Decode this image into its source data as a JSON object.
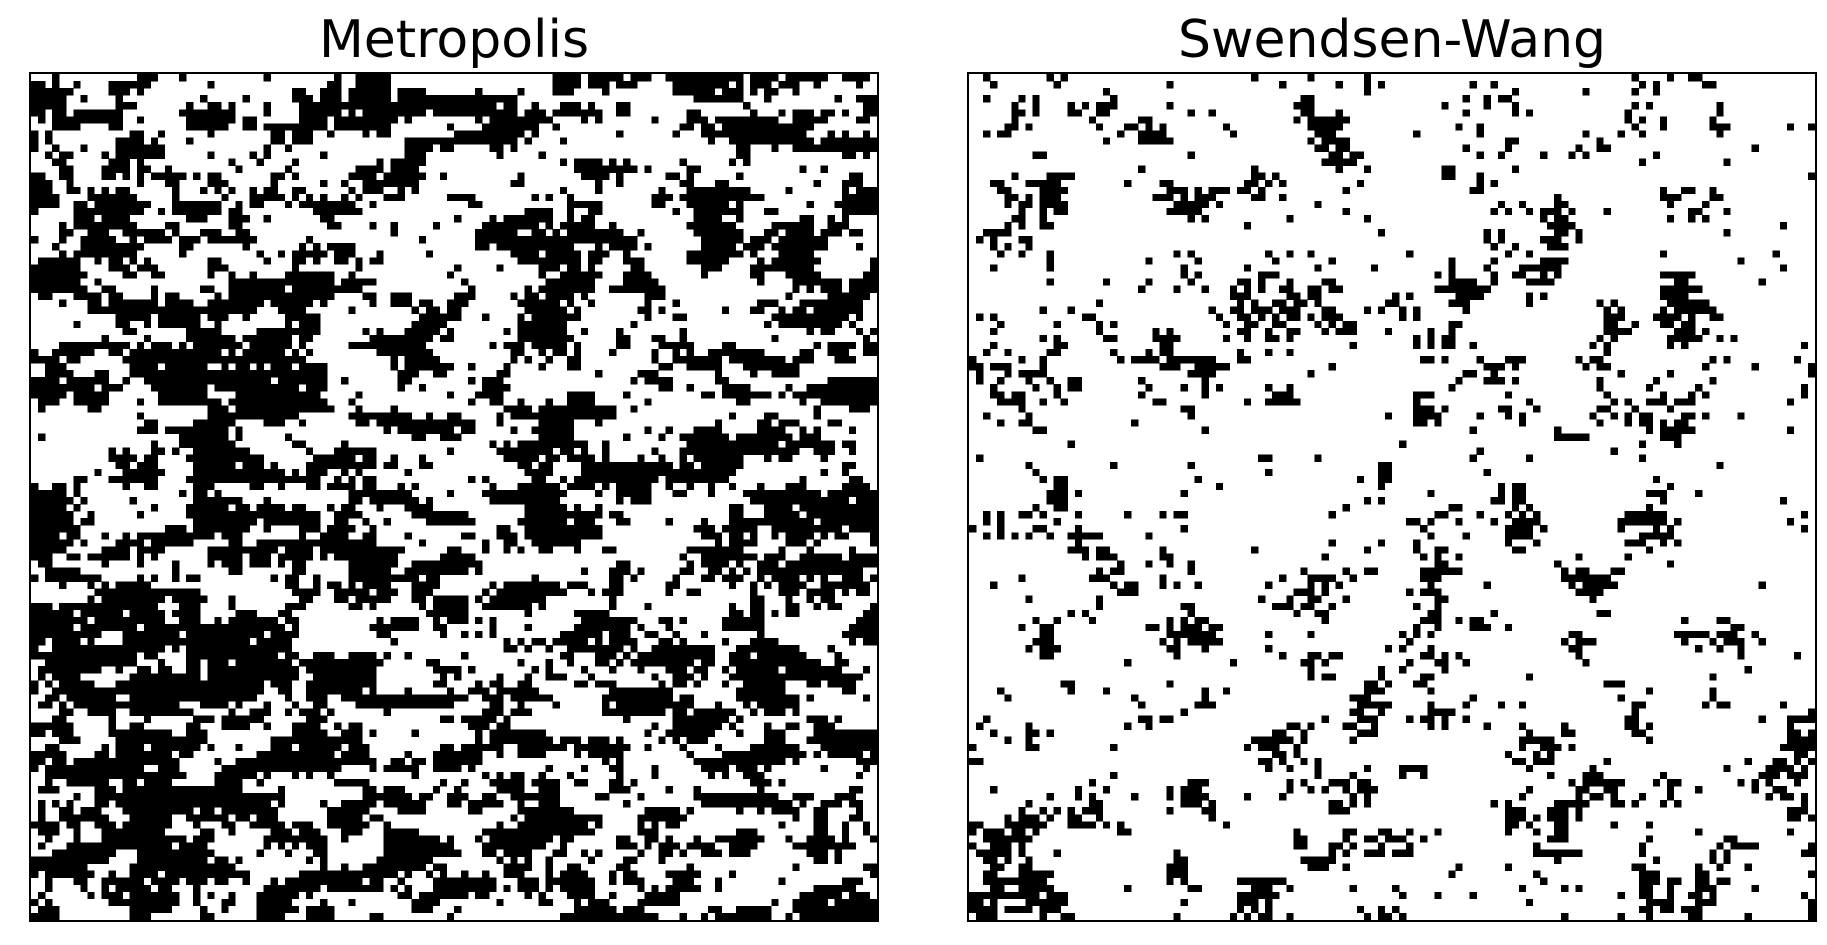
{
  "figure": {
    "background": "#ffffff",
    "spin_up_color": "#000000",
    "spin_down_color": "#ffffff"
  },
  "chart_data": [
    {
      "type": "heatmap",
      "title": "Metropolis",
      "xlabel": "",
      "ylabel": "",
      "grid": false,
      "legend": "none",
      "lattice_size": 120,
      "values": [
        -1,
        1
      ],
      "black_fraction": 0.45,
      "pattern": "large connected domains, horizontally elongated"
    },
    {
      "type": "heatmap",
      "title": "Swendsen-Wang",
      "xlabel": "",
      "ylabel": "",
      "grid": false,
      "legend": "none",
      "lattice_size": 120,
      "values": [
        -1,
        1
      ],
      "black_fraction": 0.12,
      "pattern": "mostly white with sparse scattered black clusters"
    }
  ]
}
